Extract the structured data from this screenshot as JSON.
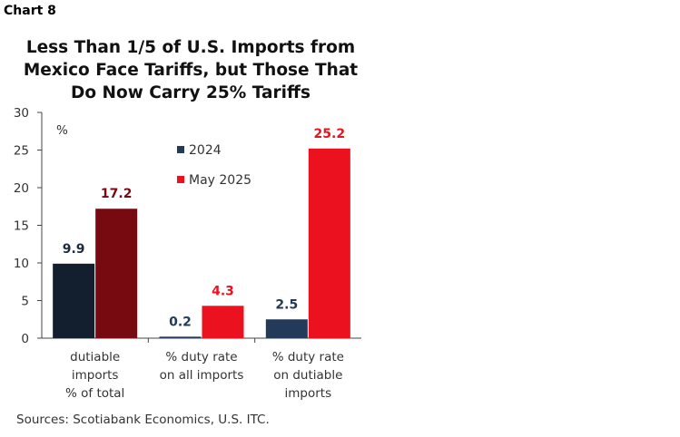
{
  "chart_label": "Chart 8",
  "chart_data": {
    "type": "bar",
    "title": "Less Than 1/5 of U.S. Imports from Mexico Face Tariffs, but Those That Do Now Carry 25% Tariffs",
    "title_lines": [
      "Less Than 1/5 of U.S. Imports from",
      "Mexico Face Tariffs, but Those That",
      "Do Now Carry 25% Tariffs"
    ],
    "ylabel": "%",
    "ylim": [
      0,
      30
    ],
    "yticks": [
      0,
      5,
      10,
      15,
      20,
      25,
      30
    ],
    "grid": false,
    "legend_position": "top-center",
    "categories": [
      [
        "dutiable",
        "imports",
        "% of total"
      ],
      [
        "% duty rate",
        "on all imports"
      ],
      [
        "% duty rate",
        "on dutiable",
        "imports"
      ]
    ],
    "series": [
      {
        "name": "2024",
        "values": [
          9.9,
          0.2,
          2.5
        ],
        "colors": [
          "#131f2e",
          "#233a58",
          "#233a58"
        ],
        "label_colors": [
          "#1b2a40",
          "#233a58",
          "#233a58"
        ]
      },
      {
        "name": "May 2025",
        "values": [
          17.2,
          4.3,
          25.2
        ],
        "colors": [
          "#760a10",
          "#ec111e",
          "#ec111e"
        ],
        "label_colors": [
          "#760a10",
          "#ec111e",
          "#ec111e"
        ]
      }
    ],
    "legend_colors": [
      "#233a58",
      "#ec111e"
    ]
  },
  "source": "Sources: Scotiabank Economics, U.S. ITC."
}
